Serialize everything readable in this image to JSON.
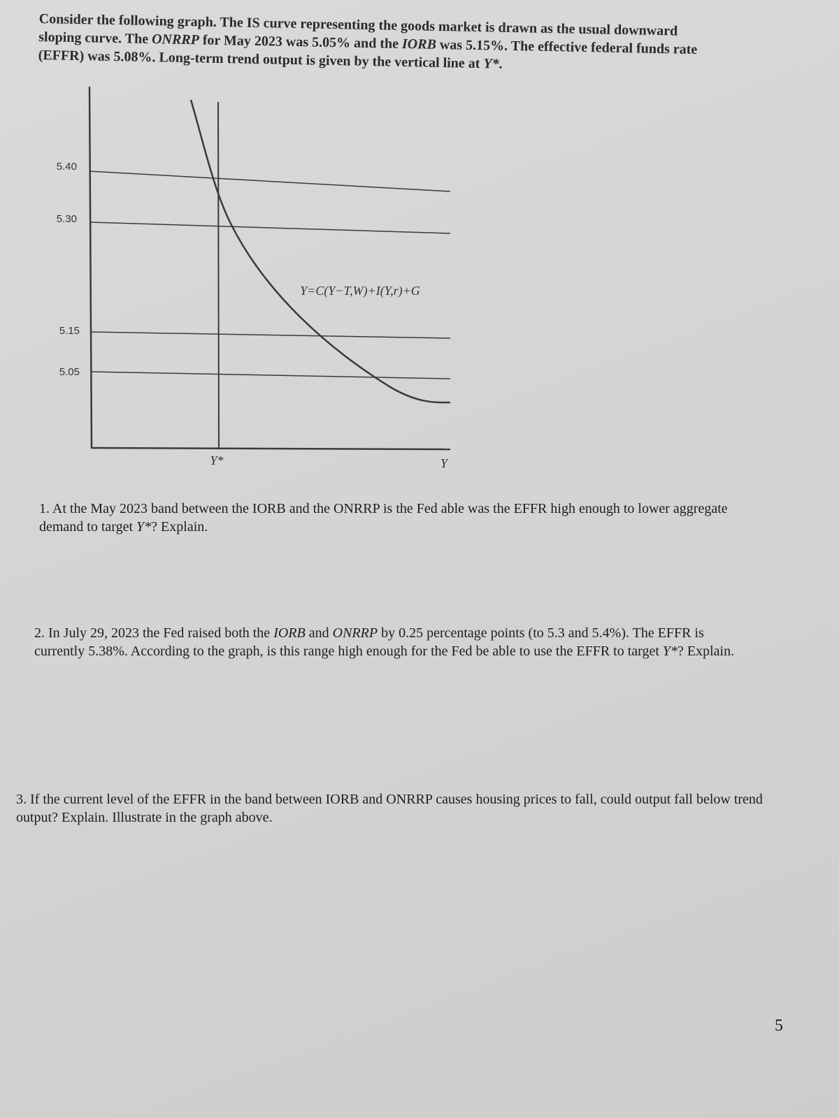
{
  "intro": {
    "runs": [
      {
        "text": "Consider the following graph. The IS curve representing the goods market is drawn as the usual downward sloping curve. The "
      },
      {
        "text": "ONRRP",
        "italic": true
      },
      {
        "text": " for May 2023 was 5.05% and the "
      },
      {
        "text": "IORB",
        "italic": true
      },
      {
        "text": " was 5.15%. The effective federal funds rate (EFFR) was 5.08%. Long-term trend output is given by the vertical line at "
      },
      {
        "text": "Y*",
        "italic": true
      },
      {
        "text": "."
      }
    ]
  },
  "graph": {
    "y_labels": [
      "5.40",
      "5.30",
      "5.15",
      "5.05"
    ],
    "curve_label": "Y=C(Y−T,W)+I(Y,r)+G",
    "x_labels": [
      "Y*",
      "Y"
    ]
  },
  "questions": [
    {
      "runs": [
        {
          "text": "1. At the May 2023 band between the IORB and the ONRRP is the Fed able was the EFFR high enough to lower aggregate demand to target "
        },
        {
          "text": "Y*",
          "italic": true
        },
        {
          "text": "? Explain."
        }
      ]
    },
    {
      "runs": [
        {
          "text": "2. In July 29, 2023 the Fed raised both the "
        },
        {
          "text": "IORB",
          "italic": true
        },
        {
          "text": " and "
        },
        {
          "text": "ONRRP",
          "italic": true
        },
        {
          "text": " by 0.25 percentage points (to 5.3 and 5.4%). The EFFR is currently 5.38%. According to the graph, is this range high enough for the Fed be able to use the EFFR to target "
        },
        {
          "text": "Y*",
          "italic": true
        },
        {
          "text": "? Explain."
        }
      ]
    },
    {
      "runs": [
        {
          "text": "3. If the current level of the EFFR in the band between IORB and ONRRP causes housing prices to fall, could output fall below trend output? Explain. Illustrate in the graph above."
        }
      ]
    }
  ],
  "page_number": "5"
}
